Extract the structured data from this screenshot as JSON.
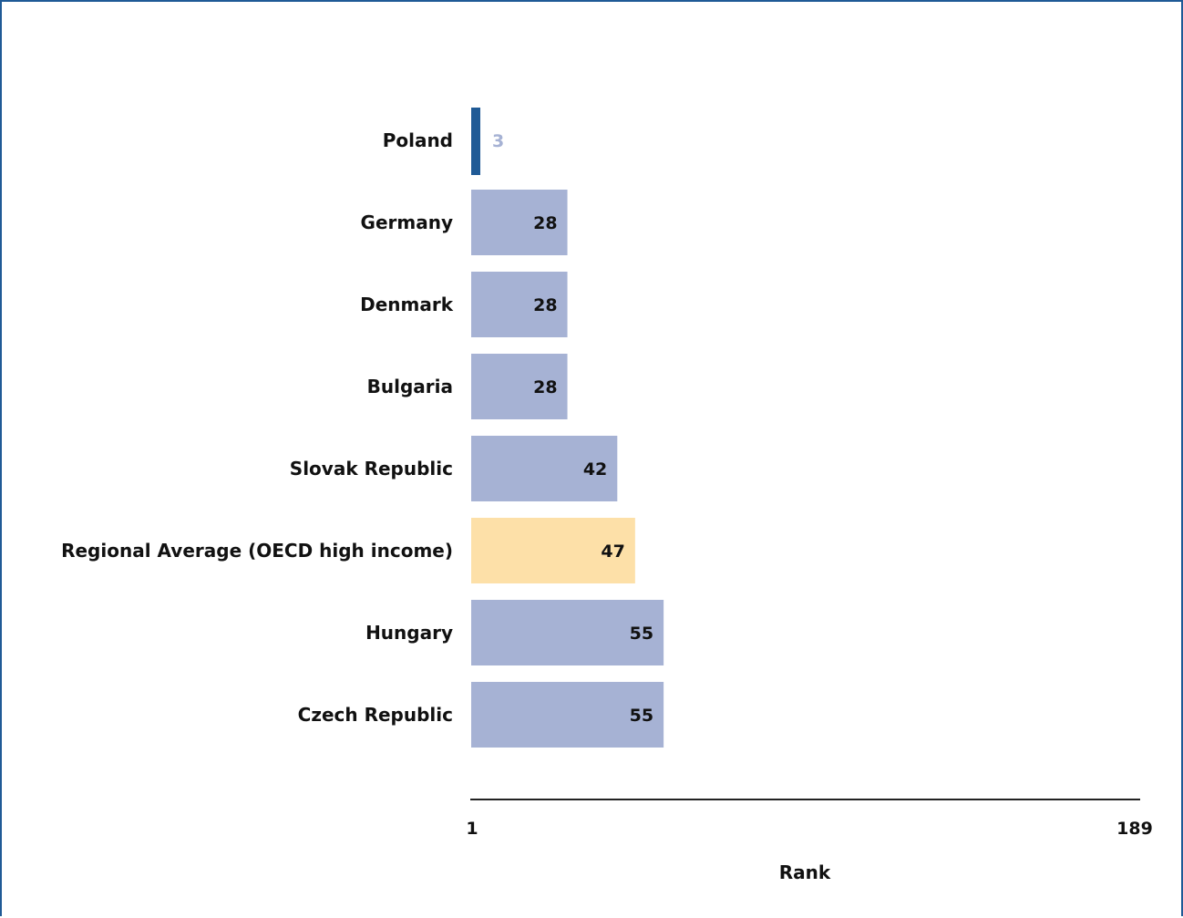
{
  "chart_data": {
    "type": "bar",
    "orientation": "horizontal",
    "categories": [
      "Poland",
      "Germany",
      "Denmark",
      "Bulgaria",
      "Slovak Republic",
      "Regional Average (OECD high income)",
      "Hungary",
      "Czech Republic"
    ],
    "values": [
      3,
      28,
      28,
      28,
      42,
      47,
      55,
      55
    ],
    "highlight": {
      "Poland": "#1f5a96",
      "Regional Average (OECD high income)": "#fde0a8"
    },
    "default_color": "#a6b2d4",
    "label_colors": {
      "Poland": "#a6b2d4",
      "default": "#111111"
    },
    "xlabel": "Rank",
    "xlim": [
      1,
      189
    ],
    "x_ticks": [
      "1",
      "189"
    ],
    "grid": false,
    "legend": "none"
  }
}
